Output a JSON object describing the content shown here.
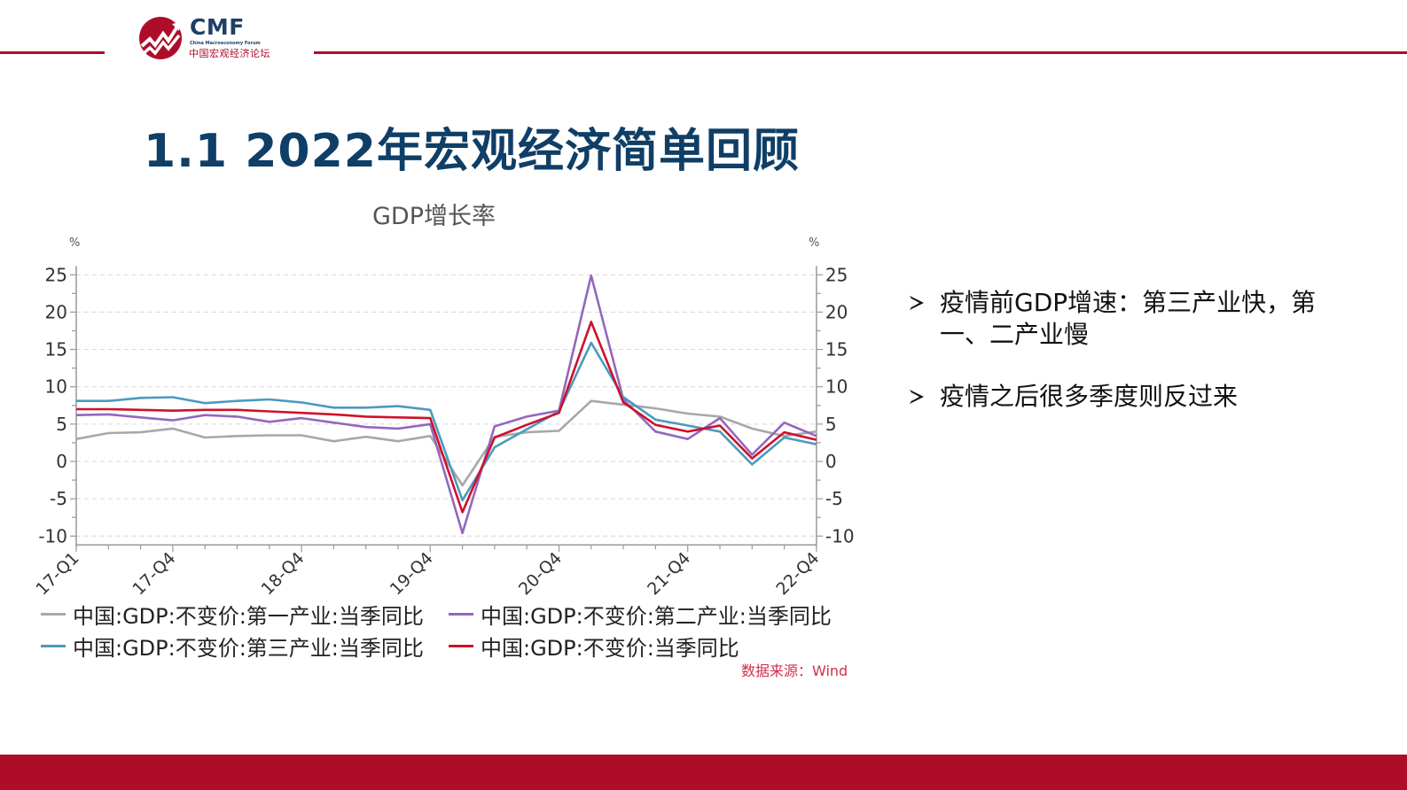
{
  "header": {
    "logo": {
      "abbr": "CMF",
      "english": "China Macroeconomy Forum",
      "chinese": "中国宏观经济论坛"
    },
    "accent_color": "#AE0D2A"
  },
  "page_title": "1.1  2022年宏观经济简单回顾",
  "bullets": [
    {
      "icon": "arrow-bullet-icon",
      "text": "疫情前GDP增速：第三产业快，第一、二产业慢"
    },
    {
      "icon": "arrow-bullet-icon",
      "text": "疫情之后很多季度则反过来"
    }
  ],
  "source_note": "数据来源：Wind",
  "footer": {
    "color": "#AE0D2A"
  },
  "chart_data": {
    "type": "line",
    "title": "GDP增长率",
    "xlabel": "",
    "ylabel": "%",
    "ylabel_right": "%",
    "ylim": [
      -10,
      25
    ],
    "yticks": [
      25,
      20,
      15,
      10,
      5,
      0,
      -5,
      -10
    ],
    "grid": true,
    "legend_position": "bottom",
    "x": [
      "17-Q1",
      "17-Q2",
      "17-Q3",
      "17-Q4",
      "18-Q1",
      "18-Q2",
      "18-Q3",
      "18-Q4",
      "19-Q1",
      "19-Q2",
      "19-Q3",
      "19-Q4",
      "20-Q1",
      "20-Q2",
      "20-Q3",
      "20-Q4",
      "21-Q1",
      "21-Q2",
      "21-Q3",
      "21-Q4",
      "22-Q1",
      "22-Q2",
      "22-Q3",
      "22-Q4"
    ],
    "x_tick_labels": [
      "17-Q1",
      "17-Q4",
      "18-Q4",
      "19-Q4",
      "20-Q4",
      "21-Q4",
      "22-Q4"
    ],
    "series": [
      {
        "name": "中国:GDP:不变价:第一产业:当季同比",
        "color": "#A8A8A8",
        "values": [
          3.0,
          3.8,
          3.9,
          4.4,
          3.2,
          3.4,
          3.5,
          3.5,
          2.7,
          3.3,
          2.7,
          3.4,
          -3.2,
          3.3,
          3.9,
          4.1,
          8.1,
          7.6,
          7.1,
          6.4,
          6.0,
          4.4,
          3.4,
          4.0
        ]
      },
      {
        "name": "中国:GDP:不变价:第二产业:当季同比",
        "color": "#9467BD",
        "values": [
          6.2,
          6.3,
          5.9,
          5.5,
          6.2,
          6.0,
          5.3,
          5.8,
          5.2,
          4.6,
          4.4,
          5.0,
          -9.6,
          4.7,
          6.0,
          6.8,
          24.9,
          8.3,
          4.0,
          3.0,
          5.8,
          0.9,
          5.2,
          3.4
        ]
      },
      {
        "name": "中国:GDP:不变价:第三产业:当季同比",
        "color": "#4A9AC0",
        "values": [
          8.1,
          8.1,
          8.5,
          8.6,
          7.8,
          8.1,
          8.3,
          7.9,
          7.2,
          7.2,
          7.4,
          6.9,
          -5.2,
          1.9,
          4.3,
          6.7,
          15.9,
          8.6,
          5.6,
          4.8,
          4.0,
          -0.4,
          3.2,
          2.3
        ]
      },
      {
        "name": "中国:GDP:不变价:当季同比",
        "color": "#D0102A",
        "values": [
          7.0,
          7.0,
          6.9,
          6.8,
          6.9,
          6.9,
          6.7,
          6.5,
          6.3,
          6.0,
          5.9,
          5.8,
          -6.8,
          3.2,
          4.9,
          6.5,
          18.7,
          7.9,
          4.9,
          4.0,
          4.8,
          0.4,
          3.9,
          2.9
        ]
      }
    ]
  }
}
